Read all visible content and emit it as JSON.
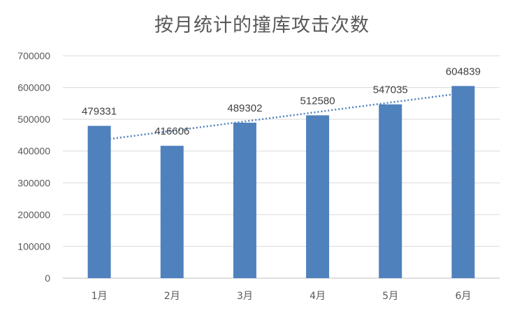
{
  "chart_data": {
    "type": "bar",
    "title": "按月统计的撞库攻击次数",
    "categories": [
      "1月",
      "2月",
      "3月",
      "4月",
      "5月",
      "6月"
    ],
    "values": [
      479331,
      416606,
      489302,
      512580,
      547035,
      604839
    ],
    "ylim": [
      0,
      700000
    ],
    "yticks": [
      0,
      100000,
      200000,
      300000,
      400000,
      500000,
      600000,
      700000
    ],
    "trendline": "linear",
    "grid": true,
    "legend": "none",
    "colors": {
      "bar": "#4F81BD",
      "trendline": "#4F81BD",
      "grid": "#D9D9D9",
      "axis": "#BFBFBF"
    }
  }
}
